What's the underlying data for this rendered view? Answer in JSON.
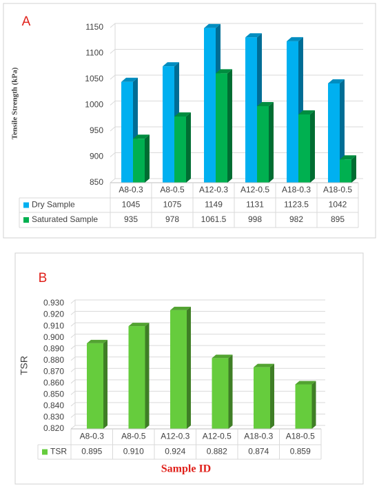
{
  "chart_data": [
    {
      "type": "bar",
      "label": "A",
      "ylabel": "Tensile Strength (kPa)",
      "categories": [
        "A8-0.3",
        "A8-0.5",
        "A12-0.3",
        "A12-0.5",
        "A18-0.3",
        "A18-0.5"
      ],
      "series": [
        {
          "name": "Dry Sample",
          "color": "#00b0f0",
          "values": [
            1045,
            1075,
            1149,
            1131,
            1123.5,
            1042
          ]
        },
        {
          "name": "Saturated Sample",
          "color": "#00b050",
          "values": [
            935,
            978,
            1061.5,
            998,
            982,
            895
          ]
        }
      ],
      "ylim": [
        850,
        1150
      ],
      "yticks": [
        850,
        900,
        950,
        1000,
        1050,
        1100,
        1150
      ],
      "grid": true,
      "data_table": true
    },
    {
      "type": "bar",
      "label": "B",
      "ylabel": "TSR",
      "xlabel": "Sample ID",
      "categories": [
        "A8-0.3",
        "A8-0.5",
        "A12-0.3",
        "A12-0.5",
        "A18-0.3",
        "A18-0.5"
      ],
      "series": [
        {
          "name": "TSR",
          "color": "#66cc3d",
          "values": [
            0.895,
            0.91,
            0.924,
            0.882,
            0.874,
            0.859
          ],
          "value_labels": [
            "0.895",
            "0.910",
            "0.924",
            "0.882",
            "0.874",
            "0.859"
          ]
        }
      ],
      "ylim": [
        0.82,
        0.93
      ],
      "yticks": [
        {
          "value": 0.82,
          "label": "0.820"
        },
        {
          "value": 0.83,
          "label": "0.830"
        },
        {
          "value": 0.84,
          "label": "0.840"
        },
        {
          "value": 0.85,
          "label": "0.850"
        },
        {
          "value": 0.86,
          "label": "0.860"
        },
        {
          "value": 0.87,
          "label": "0.870"
        },
        {
          "value": 0.88,
          "label": "0.880"
        },
        {
          "value": 0.89,
          "label": "0.890"
        },
        {
          "value": 0.9,
          "label": "0.900"
        },
        {
          "value": 0.91,
          "label": "0.910"
        },
        {
          "value": 0.92,
          "label": "0.920"
        },
        {
          "value": 0.93,
          "label": "0.930"
        }
      ],
      "grid": true,
      "data_table": true
    }
  ]
}
